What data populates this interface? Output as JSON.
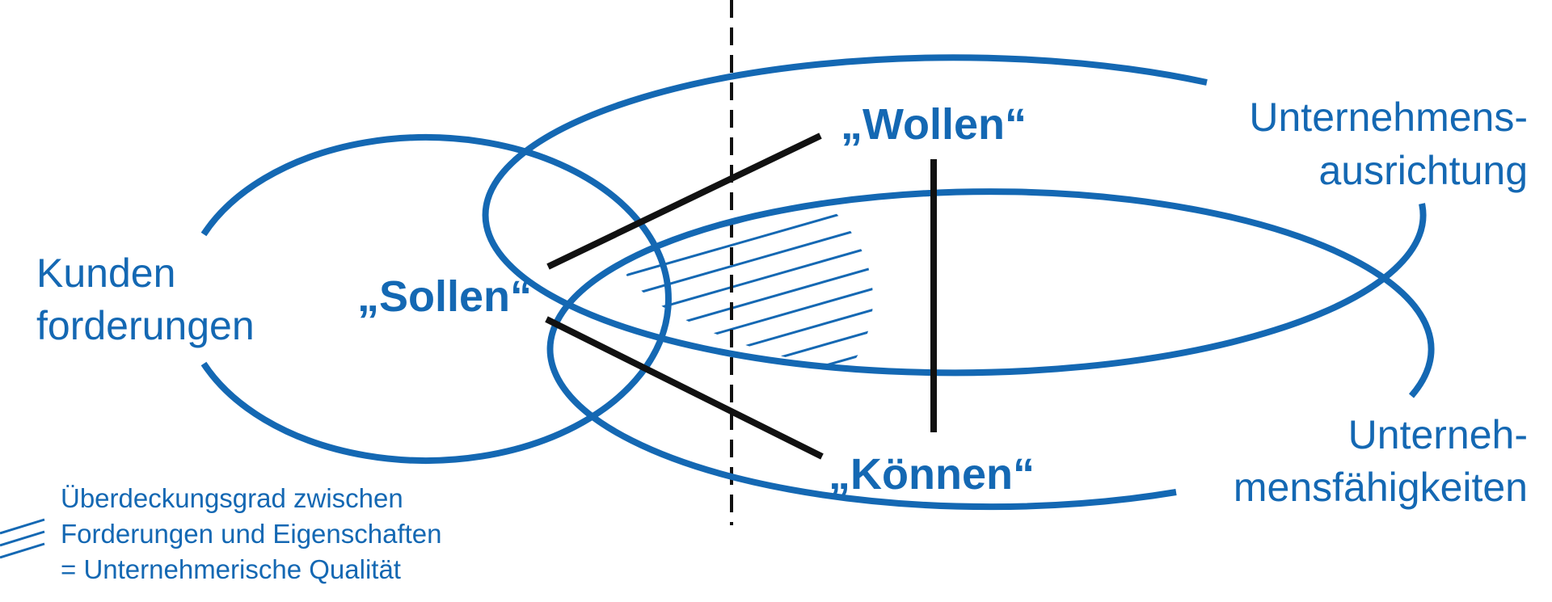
{
  "colors": {
    "primary_blue": "#1468B3",
    "black": "#111111",
    "background": "#ffffff"
  },
  "sets": {
    "kunden": {
      "line1": "Kunden",
      "line2": "forderungen"
    },
    "ausrichtung": {
      "line1": "Unternehmens-",
      "line2": "ausrichtung"
    },
    "faehigkeiten": {
      "line1": "Unterneh-",
      "line2": "mensfähigkeiten"
    }
  },
  "keywords": {
    "sollen": "„Sollen“",
    "wollen": "„Wollen“",
    "koennen": "„Können“"
  },
  "legend": {
    "line1": "Überdeckungsgrad zwischen",
    "line2": "Forderungen und Eigenschaften",
    "line3": "= Unternehmerische Qualität"
  }
}
